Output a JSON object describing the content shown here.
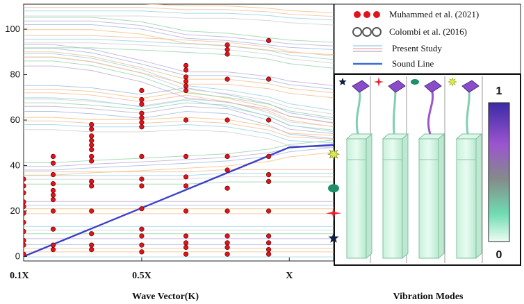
{
  "chart_data": {
    "type": "line",
    "title": "",
    "xlabel": "Wave Vector(K)",
    "ylabel": "",
    "x_ticks": [
      {
        "value": 0.1,
        "label": "0.1X"
      },
      {
        "value": 0.5,
        "label": "0.5X"
      },
      {
        "value": 1.0,
        "label": "X"
      }
    ],
    "xlim": [
      0.1,
      1.15
    ],
    "ylim": [
      -2,
      111
    ],
    "y_ticks": [
      0,
      20,
      40,
      60,
      80,
      100
    ],
    "legend": {
      "placement": "top-right",
      "entries": [
        {
          "label": "Muhammed et al. (2021)",
          "marker": "red-dots"
        },
        {
          "label": "Colombi et al. (2016)",
          "marker": "open-circles"
        },
        {
          "label": "Present Study",
          "marker": "thin-lines"
        },
        {
          "label": "Sound Line",
          "marker": "blue-line"
        }
      ]
    },
    "sound_line": {
      "color": "#3a3fc8",
      "points": [
        [
          0.1,
          0
        ],
        [
          1.0,
          48
        ],
        [
          1.15,
          49
        ]
      ]
    },
    "series_muhammed_2021": {
      "name": "Muhammed et al. (2021)",
      "color": "#e0141b",
      "points": [
        [
          0.1,
          1
        ],
        [
          0.1,
          5
        ],
        [
          0.1,
          7
        ],
        [
          0.1,
          11
        ],
        [
          0.1,
          15
        ],
        [
          0.1,
          19
        ],
        [
          0.1,
          22
        ],
        [
          0.1,
          24
        ],
        [
          0.1,
          28
        ],
        [
          0.1,
          31
        ],
        [
          0.1,
          34
        ],
        [
          0.2,
          3
        ],
        [
          0.2,
          5
        ],
        [
          0.2,
          12
        ],
        [
          0.2,
          20
        ],
        [
          0.2,
          25
        ],
        [
          0.2,
          27
        ],
        [
          0.2,
          29
        ],
        [
          0.2,
          32
        ],
        [
          0.2,
          36
        ],
        [
          0.2,
          41
        ],
        [
          0.2,
          44
        ],
        [
          0.33,
          3
        ],
        [
          0.33,
          5
        ],
        [
          0.33,
          10
        ],
        [
          0.33,
          20
        ],
        [
          0.33,
          31
        ],
        [
          0.33,
          33
        ],
        [
          0.33,
          42
        ],
        [
          0.33,
          44
        ],
        [
          0.33,
          47
        ],
        [
          0.33,
          49
        ],
        [
          0.33,
          51
        ],
        [
          0.33,
          53
        ],
        [
          0.33,
          56
        ],
        [
          0.33,
          58
        ],
        [
          0.5,
          2
        ],
        [
          0.5,
          5
        ],
        [
          0.5,
          9
        ],
        [
          0.5,
          12
        ],
        [
          0.5,
          21
        ],
        [
          0.5,
          31
        ],
        [
          0.5,
          34
        ],
        [
          0.5,
          44
        ],
        [
          0.5,
          57
        ],
        [
          0.5,
          59
        ],
        [
          0.5,
          61
        ],
        [
          0.5,
          63
        ],
        [
          0.5,
          67
        ],
        [
          0.5,
          69
        ],
        [
          0.5,
          73
        ],
        [
          0.65,
          1
        ],
        [
          0.65,
          4
        ],
        [
          0.65,
          6
        ],
        [
          0.65,
          9
        ],
        [
          0.65,
          20
        ],
        [
          0.65,
          31
        ],
        [
          0.65,
          35
        ],
        [
          0.65,
          44
        ],
        [
          0.65,
          60
        ],
        [
          0.65,
          73
        ],
        [
          0.65,
          75
        ],
        [
          0.65,
          77
        ],
        [
          0.65,
          79
        ],
        [
          0.65,
          82
        ],
        [
          0.65,
          84
        ],
        [
          0.79,
          1
        ],
        [
          0.79,
          4
        ],
        [
          0.79,
          6
        ],
        [
          0.79,
          9
        ],
        [
          0.79,
          20
        ],
        [
          0.79,
          30
        ],
        [
          0.79,
          38
        ],
        [
          0.79,
          44
        ],
        [
          0.79,
          60
        ],
        [
          0.79,
          78
        ],
        [
          0.79,
          89
        ],
        [
          0.79,
          91
        ],
        [
          0.79,
          93
        ],
        [
          0.93,
          1
        ],
        [
          0.93,
          3
        ],
        [
          0.93,
          6
        ],
        [
          0.93,
          9
        ],
        [
          0.93,
          20
        ],
        [
          0.93,
          33
        ],
        [
          0.93,
          36
        ],
        [
          0.93,
          44
        ],
        [
          0.93,
          60
        ],
        [
          0.93,
          78
        ],
        [
          0.93,
          95
        ]
      ]
    },
    "series_present_study": {
      "name": "Present Study",
      "colors": [
        "#9fd6ea",
        "#f2c4a4",
        "#f4c58a",
        "#a9bfe6",
        "#c7b3d9",
        "#9fd7b0",
        "#d4d4d4"
      ],
      "x": [
        0.1,
        0.2,
        0.33,
        0.5,
        0.65,
        0.79,
        0.93,
        1.0,
        1.15
      ],
      "bands": [
        [
          2,
          2,
          2,
          2,
          2,
          2,
          2,
          2,
          2
        ],
        [
          10,
          10,
          10,
          10,
          10,
          10,
          10,
          10,
          10
        ],
        [
          21,
          21,
          21,
          21,
          21,
          21,
          21,
          21,
          21
        ],
        [
          34,
          34,
          34,
          34,
          34,
          35,
          35,
          35,
          35
        ],
        [
          38,
          38,
          39,
          40,
          41,
          42,
          44,
          46,
          48
        ],
        [
          58,
          58,
          57,
          57,
          58,
          57,
          54,
          51,
          50
        ],
        [
          66,
          66,
          65,
          63,
          66,
          65,
          60,
          56,
          54
        ],
        [
          72,
          72,
          71,
          68,
          71,
          68,
          64,
          60,
          57
        ],
        [
          86,
          86,
          84,
          79,
          72,
          70,
          67,
          64,
          61
        ],
        [
          90,
          90,
          88,
          83,
          78,
          78,
          76,
          74,
          72
        ],
        [
          94,
          94,
          94,
          93,
          92,
          91,
          89,
          87,
          85
        ],
        [
          102,
          102,
          102,
          100,
          96,
          95,
          93,
          92,
          91
        ],
        [
          108,
          108,
          108,
          108,
          107,
          107,
          106,
          105,
          104
        ]
      ]
    },
    "colorbar": {
      "max_label": "1",
      "min_label": "0",
      "colors": [
        "#5a2bbf",
        "#a65fd2",
        "#7f8f8a",
        "#6fd9b1",
        "#e9fbf1"
      ]
    },
    "mode_markers": [
      {
        "shape": "star",
        "color": "#102040",
        "freq": 8
      },
      {
        "shape": "cross-star",
        "color": "#e8202a",
        "freq": 19
      },
      {
        "shape": "blob",
        "color": "#1f8f6a",
        "freq": 30
      },
      {
        "shape": "burst",
        "color": "#d9e84a",
        "freq": 45
      }
    ],
    "inset_title": "Vibration Modes"
  }
}
